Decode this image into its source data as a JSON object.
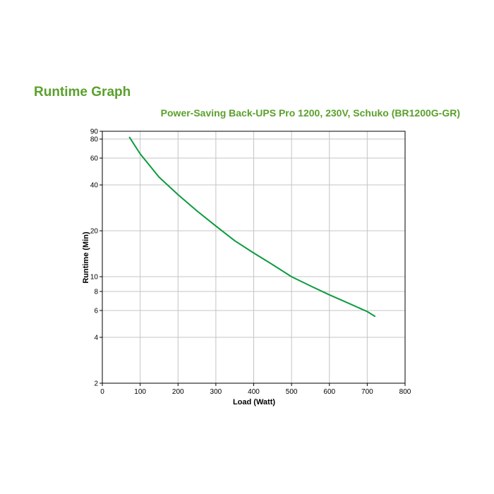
{
  "page": {
    "title": "Runtime Graph"
  },
  "chart_data": {
    "type": "line",
    "title": "Power-Saving Back-UPS Pro 1200, 230V, Schuko (BR1200G-GR)",
    "xlabel": "Load (Watt)",
    "ylabel": "Runtime (Min)",
    "xlim": [
      0,
      800
    ],
    "ylim": [
      2,
      90
    ],
    "yscale": "log",
    "grid": true,
    "x_ticks": [
      0,
      100,
      200,
      300,
      400,
      500,
      600,
      700,
      800
    ],
    "y_ticks": [
      2,
      4,
      6,
      8,
      10,
      20,
      40,
      60,
      80,
      90
    ],
    "series": [
      {
        "color": "#0c9b3e",
        "x": [
          72,
          100,
          150,
          200,
          250,
          300,
          350,
          400,
          450,
          500,
          550,
          600,
          650,
          700,
          720
        ],
        "y": [
          82,
          64,
          45,
          34.5,
          27,
          21.5,
          17.2,
          14.3,
          12,
          10,
          8.7,
          7.6,
          6.7,
          5.9,
          5.5
        ]
      }
    ]
  }
}
